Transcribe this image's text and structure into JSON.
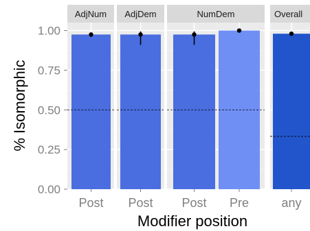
{
  "chart_data": {
    "type": "bar",
    "title": "",
    "xlabel": "Modifier position",
    "ylabel": "% Isomorphic",
    "ylim": [
      0,
      1.05
    ],
    "y_ticks": [
      "0.00",
      "0.25",
      "0.50",
      "0.75",
      "1.00"
    ],
    "grid": true,
    "facets": [
      {
        "label": "AdjNum",
        "reference_line": 0.5,
        "bars": [
          {
            "category": "Post",
            "value": 0.975,
            "ci_low": 0.96,
            "ci_high": 0.985,
            "color": "#4a6ee0"
          }
        ]
      },
      {
        "label": "AdjDem",
        "reference_line": 0.5,
        "bars": [
          {
            "category": "Post",
            "value": 0.975,
            "ci_low": 0.91,
            "ci_high": 0.995,
            "color": "#4a6ee0"
          }
        ]
      },
      {
        "label": "NumDem",
        "reference_line": 0.5,
        "bars": [
          {
            "category": "Post",
            "value": 0.975,
            "ci_low": 0.91,
            "ci_high": 0.995,
            "color": "#4a6ee0"
          },
          {
            "category": "Pre",
            "value": 1.0,
            "ci_low": 0.995,
            "ci_high": 1.0,
            "color": "#6f8ff5"
          }
        ]
      },
      {
        "label": "Overall",
        "reference_line": 0.333,
        "bars": [
          {
            "category": "any",
            "value": 0.98,
            "ci_low": 0.97,
            "ci_high": 0.99,
            "color": "#2255cc"
          }
        ]
      }
    ],
    "colors": {
      "panel_background": "#ebebeb",
      "grid": "#ffffff",
      "strip_background": "#d9d9d9",
      "reference_line": "#000000",
      "point": "#000000"
    }
  }
}
